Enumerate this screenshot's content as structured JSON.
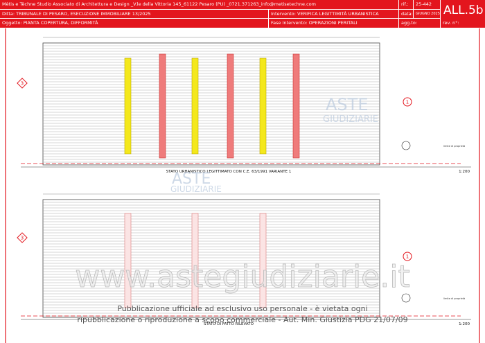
{
  "header": {
    "studio": "Mètis e Tèchne Studio Associato di Architettura e Design _V.le della Vittoria 145_61122 Pesaro (PU) _0721.371263_info@metisetechne.com",
    "rif_label": "rif.:",
    "rif": "25-442",
    "code": "ALL.5b",
    "ditta": "Ditta: TRIBUNALE DI PESARO, ESECUZIONE IMMOBILIARE 13/2025",
    "intervento": "Intervento: VERIFICA LEGITTIMITÀ URBANISTICA",
    "data_label": "data:",
    "data": "GIUGNO 2025",
    "oggetto": "Oggetto: PIANTA COPERTURA, DIFFORMITÀ",
    "fase": "Fase Intervento: OPERAZIONI PERITALI",
    "agg_label": "agg.to:",
    "rev_label": "rev. n°:"
  },
  "drawings": [
    {
      "title": "STATO URBANISTICO LEGITTIMATO CON C.E. 63/1991 VARIANTE 1",
      "scale": "1:200",
      "section_left": "3",
      "section_right": "1",
      "boundary": "limite di proprietà"
    },
    {
      "title": "STATO DI FATTO RILEVATO",
      "scale": "1:200",
      "section_left": "3",
      "section_right": "1",
      "boundary": "limite di proprietà"
    }
  ],
  "watermark": {
    "logo_top": "ASTE",
    "logo_bottom": "GIUDIZIARIE",
    "site": "www.astegiudiziarie.it",
    "notice_1": "Pubblicazione ufficiale ad esclusivo uso personale - è vietata ogni",
    "notice_2": "ripubblicazione o riproduzione a scopo commerciale - Aut. Min. Giustizia PDG 21/07/09"
  }
}
